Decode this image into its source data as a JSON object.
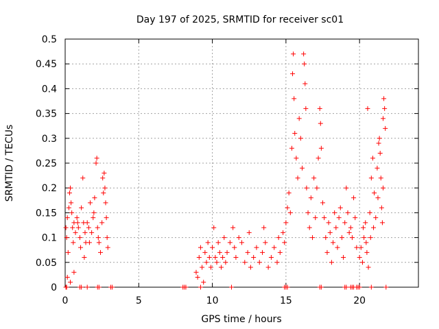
{
  "chart_data": {
    "type": "scatter",
    "title": "Day 197 of 2025, SRMTID for receiver sc01",
    "xlabel": "GPS time / hours",
    "ylabel": "SRMTID / TECUs",
    "xlim": [
      0,
      24
    ],
    "ylim": [
      0,
      0.5
    ],
    "xticks": [
      0,
      5,
      10,
      15,
      20
    ],
    "yticks": [
      0,
      0.05,
      0.1,
      0.15,
      0.2,
      0.25,
      0.3,
      0.35,
      0.4,
      0.45,
      0.5
    ],
    "xtick_labels": [
      "0",
      "5",
      "10",
      "15",
      "20"
    ],
    "ytick_labels": [
      "0",
      "0.05",
      "0.1",
      "0.15",
      "0.2",
      "0.25",
      "0.3",
      "0.35",
      "0.4",
      "0.45",
      "0.5"
    ],
    "grid": true,
    "marker": "+",
    "color": "#ff0000",
    "series": [
      {
        "name": "SRMTID",
        "points": [
          [
            0.05,
            0.12
          ],
          [
            0.1,
            0.1
          ],
          [
            0.15,
            0.14
          ],
          [
            0.2,
            0.07
          ],
          [
            0.25,
            0.16
          ],
          [
            0.3,
            0.19
          ],
          [
            0.35,
            0.2
          ],
          [
            0.4,
            0.17
          ],
          [
            0.45,
            0.15
          ],
          [
            0.5,
            0.12
          ],
          [
            0.55,
            0.09
          ],
          [
            0.6,
            0.13
          ],
          [
            0.7,
            0.11
          ],
          [
            0.8,
            0.14
          ],
          [
            0.9,
            0.12
          ],
          [
            1.0,
            0.1
          ],
          [
            1.1,
            0.16
          ],
          [
            1.2,
            0.22
          ],
          [
            1.25,
            0.13
          ],
          [
            1.3,
            0.06
          ],
          [
            1.4,
            0.09
          ],
          [
            1.5,
            0.13
          ],
          [
            1.6,
            0.12
          ],
          [
            1.7,
            0.17
          ],
          [
            1.8,
            0.11
          ],
          [
            1.9,
            0.14
          ],
          [
            2.0,
            0.18
          ],
          [
            2.1,
            0.25
          ],
          [
            2.15,
            0.26
          ],
          [
            2.2,
            0.12
          ],
          [
            2.3,
            0.09
          ],
          [
            2.4,
            0.07
          ],
          [
            2.5,
            0.13
          ],
          [
            2.6,
            0.19
          ],
          [
            2.65,
            0.23
          ],
          [
            2.7,
            0.2
          ],
          [
            2.75,
            0.17
          ],
          [
            2.8,
            0.14
          ],
          [
            2.85,
            0.1
          ],
          [
            2.9,
            0.08
          ],
          [
            0.15,
            0.02
          ],
          [
            0.35,
            0.01
          ],
          [
            0.6,
            0.03
          ],
          [
            0.85,
            0.13
          ],
          [
            1.05,
            0.08
          ],
          [
            1.35,
            0.11
          ],
          [
            1.65,
            0.09
          ],
          [
            1.95,
            0.15
          ],
          [
            2.25,
            0.1
          ],
          [
            2.55,
            0.22
          ],
          [
            8.9,
            0.03
          ],
          [
            9.0,
            0.02
          ],
          [
            9.1,
            0.06
          ],
          [
            9.2,
            0.08
          ],
          [
            9.3,
            0.04
          ],
          [
            9.4,
            0.01
          ],
          [
            9.5,
            0.07
          ],
          [
            9.6,
            0.05
          ],
          [
            9.7,
            0.09
          ],
          [
            9.8,
            0.06
          ],
          [
            9.9,
            0.04
          ],
          [
            10.0,
            0.08
          ],
          [
            10.1,
            0.12
          ],
          [
            10.2,
            0.06
          ],
          [
            10.3,
            0.05
          ],
          [
            10.4,
            0.09
          ],
          [
            10.5,
            0.07
          ],
          [
            10.6,
            0.04
          ],
          [
            10.7,
            0.06
          ],
          [
            10.8,
            0.1
          ],
          [
            10.9,
            0.05
          ],
          [
            11.0,
            0.07
          ],
          [
            11.2,
            0.09
          ],
          [
            11.4,
            0.12
          ],
          [
            11.5,
            0.08
          ],
          [
            11.6,
            0.06
          ],
          [
            11.8,
            0.1
          ],
          [
            12.0,
            0.09
          ],
          [
            12.2,
            0.05
          ],
          [
            12.4,
            0.07
          ],
          [
            12.5,
            0.11
          ],
          [
            12.6,
            0.04
          ],
          [
            12.8,
            0.06
          ],
          [
            13.0,
            0.08
          ],
          [
            13.2,
            0.05
          ],
          [
            13.4,
            0.07
          ],
          [
            13.5,
            0.12
          ],
          [
            13.6,
            0.09
          ],
          [
            13.8,
            0.04
          ],
          [
            14.0,
            0.06
          ],
          [
            14.2,
            0.08
          ],
          [
            14.4,
            0.05
          ],
          [
            14.5,
            0.1
          ],
          [
            14.6,
            0.07
          ],
          [
            14.8,
            0.11
          ],
          [
            14.9,
            0.09
          ],
          [
            15.0,
            0.13
          ],
          [
            15.1,
            0.16
          ],
          [
            15.2,
            0.19
          ],
          [
            15.3,
            0.15
          ],
          [
            15.4,
            0.28
          ],
          [
            15.45,
            0.43
          ],
          [
            15.5,
            0.47
          ],
          [
            15.55,
            0.38
          ],
          [
            15.6,
            0.31
          ],
          [
            15.7,
            0.26
          ],
          [
            15.8,
            0.22
          ],
          [
            15.9,
            0.34
          ],
          [
            16.0,
            0.3
          ],
          [
            16.1,
            0.24
          ],
          [
            16.2,
            0.47
          ],
          [
            16.25,
            0.45
          ],
          [
            16.3,
            0.41
          ],
          [
            16.35,
            0.36
          ],
          [
            16.4,
            0.2
          ],
          [
            16.5,
            0.15
          ],
          [
            16.6,
            0.12
          ],
          [
            16.7,
            0.18
          ],
          [
            16.8,
            0.1
          ],
          [
            16.9,
            0.22
          ],
          [
            17.0,
            0.14
          ],
          [
            17.1,
            0.2
          ],
          [
            17.2,
            0.26
          ],
          [
            17.3,
            0.36
          ],
          [
            17.35,
            0.33
          ],
          [
            17.4,
            0.28
          ],
          [
            17.5,
            0.17
          ],
          [
            17.6,
            0.14
          ],
          [
            17.7,
            0.1
          ],
          [
            17.8,
            0.07
          ],
          [
            17.9,
            0.13
          ],
          [
            18.0,
            0.11
          ],
          [
            18.1,
            0.05
          ],
          [
            18.2,
            0.09
          ],
          [
            18.3,
            0.15
          ],
          [
            18.4,
            0.12
          ],
          [
            18.5,
            0.08
          ],
          [
            18.6,
            0.14
          ],
          [
            18.7,
            0.16
          ],
          [
            18.8,
            0.1
          ],
          [
            18.9,
            0.06
          ],
          [
            19.0,
            0.13
          ],
          [
            19.1,
            0.2
          ],
          [
            19.2,
            0.15
          ],
          [
            19.3,
            0.11
          ],
          [
            19.4,
            0.12
          ],
          [
            19.5,
            0.1
          ],
          [
            19.6,
            0.18
          ],
          [
            19.7,
            0.14
          ],
          [
            19.8,
            0.08
          ],
          [
            20.0,
            0.06
          ],
          [
            20.1,
            0.08
          ],
          [
            20.2,
            0.05
          ],
          [
            20.3,
            0.1
          ],
          [
            20.4,
            0.13
          ],
          [
            20.5,
            0.07
          ],
          [
            20.55,
            0.36
          ],
          [
            20.6,
            0.04
          ],
          [
            20.7,
            0.15
          ],
          [
            20.8,
            0.22
          ],
          [
            20.9,
            0.26
          ],
          [
            21.0,
            0.19
          ],
          [
            21.1,
            0.14
          ],
          [
            21.2,
            0.24
          ],
          [
            21.3,
            0.29
          ],
          [
            21.35,
            0.3
          ],
          [
            21.4,
            0.27
          ],
          [
            21.5,
            0.16
          ],
          [
            21.55,
            0.13
          ],
          [
            21.6,
            0.34
          ],
          [
            21.65,
            0.38
          ],
          [
            21.7,
            0.36
          ],
          [
            21.75,
            0.32
          ],
          [
            21.6,
            0.2
          ],
          [
            21.45,
            0.22
          ],
          [
            21.25,
            0.18
          ],
          [
            20.95,
            0.12
          ],
          [
            20.75,
            0.1
          ],
          [
            20.45,
            0.09
          ],
          [
            20.25,
            0.12
          ],
          [
            0.05,
            0
          ],
          [
            0.1,
            0
          ],
          [
            1.0,
            0
          ],
          [
            1.1,
            0
          ],
          [
            1.5,
            0
          ],
          [
            2.2,
            0
          ],
          [
            2.3,
            0
          ],
          [
            3.1,
            0
          ],
          [
            3.2,
            0
          ],
          [
            8.0,
            0
          ],
          [
            8.1,
            0
          ],
          [
            8.2,
            0
          ],
          [
            9.2,
            0
          ],
          [
            11.3,
            0
          ],
          [
            14.9,
            0
          ],
          [
            15.0,
            0
          ],
          [
            15.1,
            0
          ],
          [
            17.3,
            0
          ],
          [
            17.4,
            0
          ],
          [
            19.0,
            0
          ],
          [
            19.1,
            0
          ],
          [
            19.4,
            0
          ],
          [
            19.5,
            0
          ],
          [
            19.6,
            0
          ],
          [
            19.8,
            0
          ],
          [
            19.9,
            0
          ],
          [
            20.0,
            0
          ],
          [
            20.8,
            0
          ],
          [
            21.8,
            0
          ]
        ]
      }
    ]
  }
}
